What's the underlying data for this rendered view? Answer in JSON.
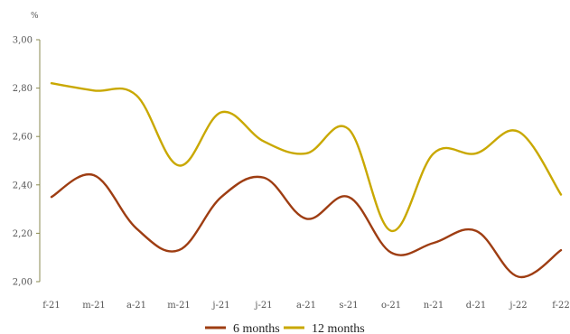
{
  "chart_data": {
    "type": "line",
    "ylabel": "%",
    "ylim": [
      2.0,
      3.0
    ],
    "yticks": [
      "2,00",
      "2,20",
      "2,40",
      "2,60",
      "2,80",
      "3,00"
    ],
    "categories": [
      "f-21",
      "m-21",
      "a-21",
      "m-21",
      "j-21",
      "j-21",
      "a-21",
      "s-21",
      "o-21",
      "n-21",
      "d-21",
      "j-22",
      "f-22"
    ],
    "grid": false,
    "legend": "bottom",
    "series": [
      {
        "name": "6 months",
        "color": "#9e3d12",
        "values": [
          2.35,
          2.44,
          2.22,
          2.13,
          2.35,
          2.43,
          2.26,
          2.35,
          2.12,
          2.16,
          2.21,
          2.02,
          2.13
        ]
      },
      {
        "name": "12 months",
        "color": "#c9a800",
        "values": [
          2.82,
          2.79,
          2.77,
          2.48,
          2.7,
          2.58,
          2.53,
          2.63,
          2.21,
          2.53,
          2.53,
          2.62,
          2.36
        ]
      }
    ]
  }
}
